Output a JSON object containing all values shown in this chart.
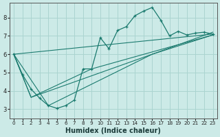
{
  "xlabel": "Humidex (Indice chaleur)",
  "bg_color": "#cceae7",
  "grid_color": "#aad4d0",
  "line_color": "#1a7a6e",
  "x_ticks": [
    0,
    1,
    2,
    3,
    4,
    5,
    6,
    7,
    8,
    9,
    10,
    11,
    12,
    13,
    14,
    15,
    16,
    17,
    18,
    19,
    20,
    21,
    22,
    23
  ],
  "y_ticks": [
    3,
    4,
    5,
    6,
    7,
    8
  ],
  "xlim": [
    -0.5,
    23.5
  ],
  "ylim": [
    2.5,
    8.8
  ],
  "series1_x": [
    0,
    1,
    2,
    3,
    4,
    5,
    6,
    7,
    8,
    9,
    10,
    11,
    12,
    13,
    14,
    15,
    16,
    17,
    18,
    19,
    20,
    21,
    22,
    23
  ],
  "series1_y": [
    6.0,
    4.9,
    4.1,
    3.6,
    3.2,
    3.05,
    3.2,
    3.5,
    5.2,
    5.2,
    6.9,
    6.3,
    7.3,
    7.5,
    8.1,
    8.35,
    8.55,
    7.85,
    7.0,
    7.25,
    7.05,
    7.15,
    7.2,
    7.1
  ],
  "trend1_x": [
    0,
    23
  ],
  "trend1_y": [
    6.0,
    7.1
  ],
  "trend2_x": [
    0,
    2,
    9,
    23
  ],
  "trend2_y": [
    6.0,
    3.65,
    5.2,
    7.05
  ],
  "trend3_x": [
    0,
    2,
    16,
    23
  ],
  "trend3_y": [
    6.0,
    3.65,
    6.0,
    7.05
  ],
  "trend4_x": [
    0,
    4,
    16,
    23
  ],
  "trend4_y": [
    6.0,
    3.2,
    6.0,
    7.2
  ]
}
